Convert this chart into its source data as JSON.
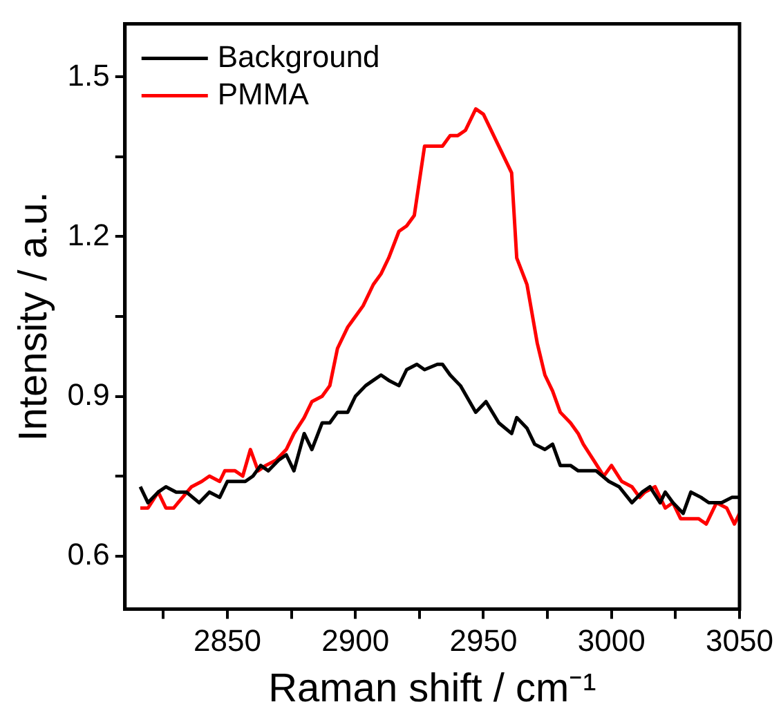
{
  "chart_data": {
    "type": "line",
    "xlabel": "Raman shift / cm⁻¹",
    "ylabel": "Intensity / a.u.",
    "xlim": [
      2810,
      3050
    ],
    "ylim": [
      0.5,
      1.6
    ],
    "xticks": [
      {
        "value": 2825,
        "label": null
      },
      2850,
      {
        "value": 2875,
        "label": null
      },
      2900,
      {
        "value": 2925,
        "label": null
      },
      2950,
      {
        "value": 2975,
        "label": null
      },
      3000,
      {
        "value": 3025,
        "label": null
      },
      3050
    ],
    "yticks": [
      0.6,
      {
        "value": 0.75,
        "label": null
      },
      0.9,
      {
        "value": 1.05,
        "label": null
      },
      1.2,
      {
        "value": 1.35,
        "label": null
      },
      1.5
    ],
    "grid": false,
    "legend": "top left",
    "marker": "none",
    "line_style": "solid",
    "series": [
      {
        "name": "Background",
        "color": "#000000",
        "x": [
          2816,
          2819,
          2823,
          2826,
          2830,
          2834,
          2839,
          2843,
          2847,
          2850,
          2854,
          2857,
          2860,
          2863,
          2866,
          2870,
          2873,
          2876,
          2880,
          2883,
          2887,
          2890,
          2893,
          2897,
          2900,
          2904,
          2907,
          2910,
          2913,
          2917,
          2920,
          2924,
          2927,
          2932,
          2934,
          2937,
          2941,
          2947,
          2951,
          2956,
          2961,
          2963,
          2967,
          2970,
          2974,
          2977,
          2980,
          2984,
          2987,
          2990,
          2994,
          2999,
          3003,
          3008,
          3012,
          3015,
          3019,
          3021,
          3024,
          3028,
          3031,
          3035,
          3038,
          3043,
          3047,
          3050
        ],
        "values": [
          0.73,
          0.7,
          0.72,
          0.73,
          0.72,
          0.72,
          0.7,
          0.72,
          0.71,
          0.74,
          0.74,
          0.74,
          0.75,
          0.77,
          0.76,
          0.78,
          0.79,
          0.76,
          0.83,
          0.8,
          0.85,
          0.85,
          0.87,
          0.87,
          0.9,
          0.92,
          0.93,
          0.94,
          0.93,
          0.92,
          0.95,
          0.96,
          0.95,
          0.96,
          0.96,
          0.94,
          0.92,
          0.87,
          0.89,
          0.85,
          0.83,
          0.86,
          0.84,
          0.81,
          0.8,
          0.81,
          0.77,
          0.77,
          0.76,
          0.76,
          0.76,
          0.74,
          0.73,
          0.7,
          0.72,
          0.73,
          0.7,
          0.72,
          0.7,
          0.68,
          0.72,
          0.71,
          0.7,
          0.7,
          0.71,
          0.71
        ]
      },
      {
        "name": "PMMA",
        "color": "#ff0000",
        "x": [
          2816,
          2819,
          2823,
          2826,
          2829,
          2836,
          2840,
          2843,
          2847,
          2849,
          2853,
          2856,
          2859,
          2862,
          2865,
          2869,
          2873,
          2876,
          2880,
          2883,
          2887,
          2890,
          2893,
          2897,
          2900,
          2903,
          2907,
          2910,
          2913,
          2917,
          2920,
          2923,
          2927,
          2930,
          2934,
          2937,
          2940,
          2943,
          2947,
          2950,
          2956,
          2961,
          2963,
          2967,
          2971,
          2974,
          2977,
          2980,
          2984,
          2987,
          2989,
          2993,
          2997,
          3000,
          3004,
          3008,
          3011,
          3013,
          3017,
          3021,
          3024,
          3027,
          3030,
          3034,
          3037,
          3041,
          3045,
          3048,
          3050
        ],
        "values": [
          0.69,
          0.69,
          0.72,
          0.69,
          0.69,
          0.73,
          0.74,
          0.75,
          0.74,
          0.76,
          0.76,
          0.75,
          0.8,
          0.76,
          0.77,
          0.78,
          0.8,
          0.83,
          0.86,
          0.89,
          0.9,
          0.92,
          0.99,
          1.03,
          1.05,
          1.07,
          1.11,
          1.13,
          1.16,
          1.21,
          1.22,
          1.24,
          1.37,
          1.37,
          1.37,
          1.39,
          1.39,
          1.4,
          1.44,
          1.43,
          1.37,
          1.32,
          1.16,
          1.11,
          1.0,
          0.94,
          0.91,
          0.87,
          0.85,
          0.83,
          0.81,
          0.78,
          0.75,
          0.77,
          0.74,
          0.73,
          0.71,
          0.72,
          0.73,
          0.69,
          0.7,
          0.67,
          0.67,
          0.67,
          0.66,
          0.7,
          0.69,
          0.66,
          0.68
        ]
      }
    ]
  }
}
